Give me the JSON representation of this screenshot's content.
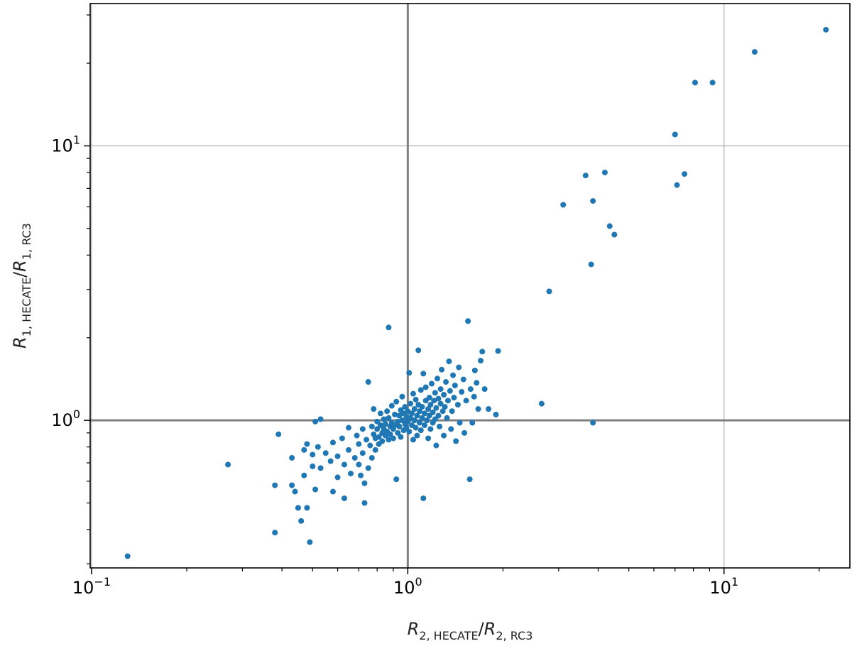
{
  "chart_data": {
    "type": "scatter",
    "title": "",
    "xlabel": {
      "parts": [
        {
          "text": "R",
          "style": "italic"
        },
        {
          "text": "2, HECATE",
          "style": "sub"
        },
        {
          "text": "/",
          "style": "normal"
        },
        {
          "text": "R",
          "style": "italic"
        },
        {
          "text": "2, RC3",
          "style": "sub"
        }
      ]
    },
    "ylabel": {
      "parts": [
        {
          "text": "R",
          "style": "italic"
        },
        {
          "text": "1, HECATE",
          "style": "sub"
        },
        {
          "text": "/",
          "style": "normal"
        },
        {
          "text": "R",
          "style": "italic"
        },
        {
          "text": "1, RC3",
          "style": "sub"
        }
      ]
    },
    "xscale": "log",
    "yscale": "log",
    "xlim": [
      0.099,
      25
    ],
    "ylim": [
      0.29,
      33
    ],
    "grid": true,
    "reference_lines": {
      "x": 1,
      "y": 1
    },
    "marker_color": "#1f77b4",
    "reference_line_color": "#808080",
    "x_ticks": [
      {
        "base": "10",
        "exp": "−1",
        "value": 0.1
      },
      {
        "base": "10",
        "exp": "0",
        "value": 1
      },
      {
        "base": "10",
        "exp": "1",
        "value": 10
      }
    ],
    "y_ticks": [
      {
        "base": "10",
        "exp": "0",
        "value": 1
      },
      {
        "base": "10",
        "exp": "1",
        "value": 10
      }
    ],
    "points": [
      [
        0.13,
        0.32
      ],
      [
        0.27,
        0.69
      ],
      [
        0.38,
        0.58
      ],
      [
        0.38,
        0.39
      ],
      [
        0.39,
        0.89
      ],
      [
        0.43,
        0.73
      ],
      [
        0.43,
        0.58
      ],
      [
        0.44,
        0.55
      ],
      [
        0.45,
        0.48
      ],
      [
        0.46,
        0.43
      ],
      [
        0.47,
        0.78
      ],
      [
        0.47,
        0.63
      ],
      [
        0.48,
        0.82
      ],
      [
        0.48,
        0.48
      ],
      [
        0.49,
        0.36
      ],
      [
        0.5,
        0.75
      ],
      [
        0.5,
        0.68
      ],
      [
        0.51,
        0.99
      ],
      [
        0.51,
        0.56
      ],
      [
        0.52,
        0.8
      ],
      [
        0.53,
        0.67
      ],
      [
        0.53,
        1.01
      ],
      [
        0.55,
        0.76
      ],
      [
        0.57,
        0.71
      ],
      [
        0.58,
        0.55
      ],
      [
        0.58,
        0.83
      ],
      [
        0.6,
        0.74
      ],
      [
        0.6,
        0.62
      ],
      [
        0.62,
        0.86
      ],
      [
        0.63,
        0.69
      ],
      [
        0.63,
        0.52
      ],
      [
        0.65,
        0.94
      ],
      [
        0.65,
        0.78
      ],
      [
        0.66,
        0.64
      ],
      [
        0.68,
        0.73
      ],
      [
        0.69,
        0.88
      ],
      [
        0.7,
        0.69
      ],
      [
        0.7,
        0.82
      ],
      [
        0.71,
        0.63
      ],
      [
        0.72,
        0.93
      ],
      [
        0.72,
        0.76
      ],
      [
        0.73,
        0.59
      ],
      [
        0.73,
        0.5
      ],
      [
        0.74,
        0.85
      ],
      [
        0.75,
        0.67
      ],
      [
        0.75,
        1.38
      ],
      [
        0.76,
        0.81
      ],
      [
        0.77,
        0.95
      ],
      [
        0.77,
        0.73
      ],
      [
        0.78,
        1.1
      ],
      [
        0.78,
        0.89
      ],
      [
        0.79,
        0.78
      ],
      [
        0.79,
        0.86
      ],
      [
        0.8,
        0.99
      ],
      [
        0.8,
        0.93
      ],
      [
        0.81,
        0.87
      ],
      [
        0.81,
        0.82
      ],
      [
        0.82,
        0.96
      ],
      [
        0.82,
        1.06
      ],
      [
        0.83,
        0.9
      ],
      [
        0.83,
        0.84
      ],
      [
        0.84,
        0.93
      ],
      [
        0.84,
        1.01
      ],
      [
        0.85,
        0.88
      ],
      [
        0.85,
        0.97
      ],
      [
        0.86,
        1.08
      ],
      [
        0.86,
        0.91
      ],
      [
        0.87,
        0.85
      ],
      [
        0.87,
        1.02
      ],
      [
        0.87,
        2.18
      ],
      [
        0.88,
        0.95
      ],
      [
        0.88,
        0.89
      ],
      [
        0.89,
        1.13
      ],
      [
        0.89,
        0.98
      ],
      [
        0.9,
        0.93
      ],
      [
        0.9,
        0.86
      ],
      [
        0.91,
        1.05
      ],
      [
        0.91,
        0.96
      ],
      [
        0.92,
        0.61
      ],
      [
        0.92,
        1.17
      ],
      [
        0.93,
        0.99
      ],
      [
        0.93,
        0.9
      ],
      [
        0.94,
        1.04
      ],
      [
        0.94,
        0.95
      ],
      [
        0.95,
        1.09
      ],
      [
        0.95,
        0.87
      ],
      [
        0.96,
        1.0
      ],
      [
        0.96,
        1.22
      ],
      [
        0.97,
        0.92
      ],
      [
        0.97,
        1.06
      ],
      [
        0.98,
        0.97
      ],
      [
        0.98,
        1.12
      ],
      [
        0.99,
        0.94
      ],
      [
        0.99,
        1.03
      ],
      [
        1.0,
        0.99
      ],
      [
        1.0,
        1.08
      ],
      [
        1.01,
        1.49
      ],
      [
        1.01,
        0.91
      ],
      [
        1.02,
        1.02
      ],
      [
        1.02,
        1.15
      ],
      [
        1.03,
        0.96
      ],
      [
        1.03,
        1.06
      ],
      [
        1.04,
        1.25
      ],
      [
        1.04,
        0.85
      ],
      [
        1.05,
        1.0
      ],
      [
        1.05,
        1.1
      ],
      [
        1.06,
        0.94
      ],
      [
        1.06,
        1.19
      ],
      [
        1.07,
        1.04
      ],
      [
        1.07,
        0.88
      ],
      [
        1.08,
        1.14
      ],
      [
        1.08,
        1.8
      ],
      [
        1.09,
        0.98
      ],
      [
        1.09,
        1.08
      ],
      [
        1.1,
        1.29
      ],
      [
        1.1,
        0.92
      ],
      [
        1.11,
        1.02
      ],
      [
        1.11,
        1.12
      ],
      [
        1.12,
        1.48
      ],
      [
        1.12,
        0.52
      ],
      [
        1.13,
        1.06
      ],
      [
        1.13,
        0.96
      ],
      [
        1.14,
        1.18
      ],
      [
        1.14,
        1.32
      ],
      [
        1.15,
        1.0
      ],
      [
        1.16,
        1.1
      ],
      [
        1.16,
        0.86
      ],
      [
        1.17,
        1.21
      ],
      [
        1.17,
        1.04
      ],
      [
        1.18,
        1.14
      ],
      [
        1.18,
        0.93
      ],
      [
        1.19,
        1.36
      ],
      [
        1.2,
        1.07
      ],
      [
        1.2,
        0.98
      ],
      [
        1.21,
        1.18
      ],
      [
        1.22,
        1.26
      ],
      [
        1.22,
        1.01
      ],
      [
        1.23,
        1.11
      ],
      [
        1.23,
        0.81
      ],
      [
        1.24,
        1.42
      ],
      [
        1.25,
        1.04
      ],
      [
        1.25,
        1.2
      ],
      [
        1.26,
        0.95
      ],
      [
        1.27,
        1.15
      ],
      [
        1.27,
        1.3
      ],
      [
        1.28,
        1.53
      ],
      [
        1.29,
        1.08
      ],
      [
        1.3,
        1.24
      ],
      [
        1.3,
        0.88
      ],
      [
        1.31,
        1.12
      ],
      [
        1.32,
        1.38
      ],
      [
        1.33,
        1.02
      ],
      [
        1.34,
        1.18
      ],
      [
        1.35,
        1.64
      ],
      [
        1.36,
        1.28
      ],
      [
        1.37,
        0.93
      ],
      [
        1.38,
        1.08
      ],
      [
        1.39,
        1.46
      ],
      [
        1.4,
        1.21
      ],
      [
        1.41,
        1.34
      ],
      [
        1.42,
        0.84
      ],
      [
        1.44,
        1.14
      ],
      [
        1.45,
        1.56
      ],
      [
        1.46,
        0.98
      ],
      [
        1.48,
        1.27
      ],
      [
        1.5,
        1.41
      ],
      [
        1.51,
        0.9
      ],
      [
        1.53,
        1.18
      ],
      [
        1.55,
        2.3
      ],
      [
        1.57,
        0.61
      ],
      [
        1.58,
        1.3
      ],
      [
        1.6,
        0.98
      ],
      [
        1.62,
        1.22
      ],
      [
        1.63,
        1.52
      ],
      [
        1.65,
        1.37
      ],
      [
        1.67,
        1.1
      ],
      [
        1.7,
        1.65
      ],
      [
        1.72,
        1.78
      ],
      [
        1.75,
        1.3
      ],
      [
        1.8,
        1.1
      ],
      [
        1.9,
        1.05
      ],
      [
        1.93,
        1.79
      ],
      [
        2.65,
        1.15
      ],
      [
        2.8,
        2.95
      ],
      [
        3.1,
        6.1
      ],
      [
        3.65,
        7.8
      ],
      [
        3.8,
        3.7
      ],
      [
        3.85,
        0.98
      ],
      [
        3.85,
        6.3
      ],
      [
        4.2,
        8.0
      ],
      [
        4.35,
        5.1
      ],
      [
        4.5,
        4.75
      ],
      [
        7.0,
        11.0
      ],
      [
        7.1,
        7.2
      ],
      [
        7.5,
        7.9
      ],
      [
        8.1,
        17.0
      ],
      [
        9.2,
        17.0
      ],
      [
        12.5,
        22.0
      ],
      [
        21.0,
        26.5
      ]
    ]
  }
}
